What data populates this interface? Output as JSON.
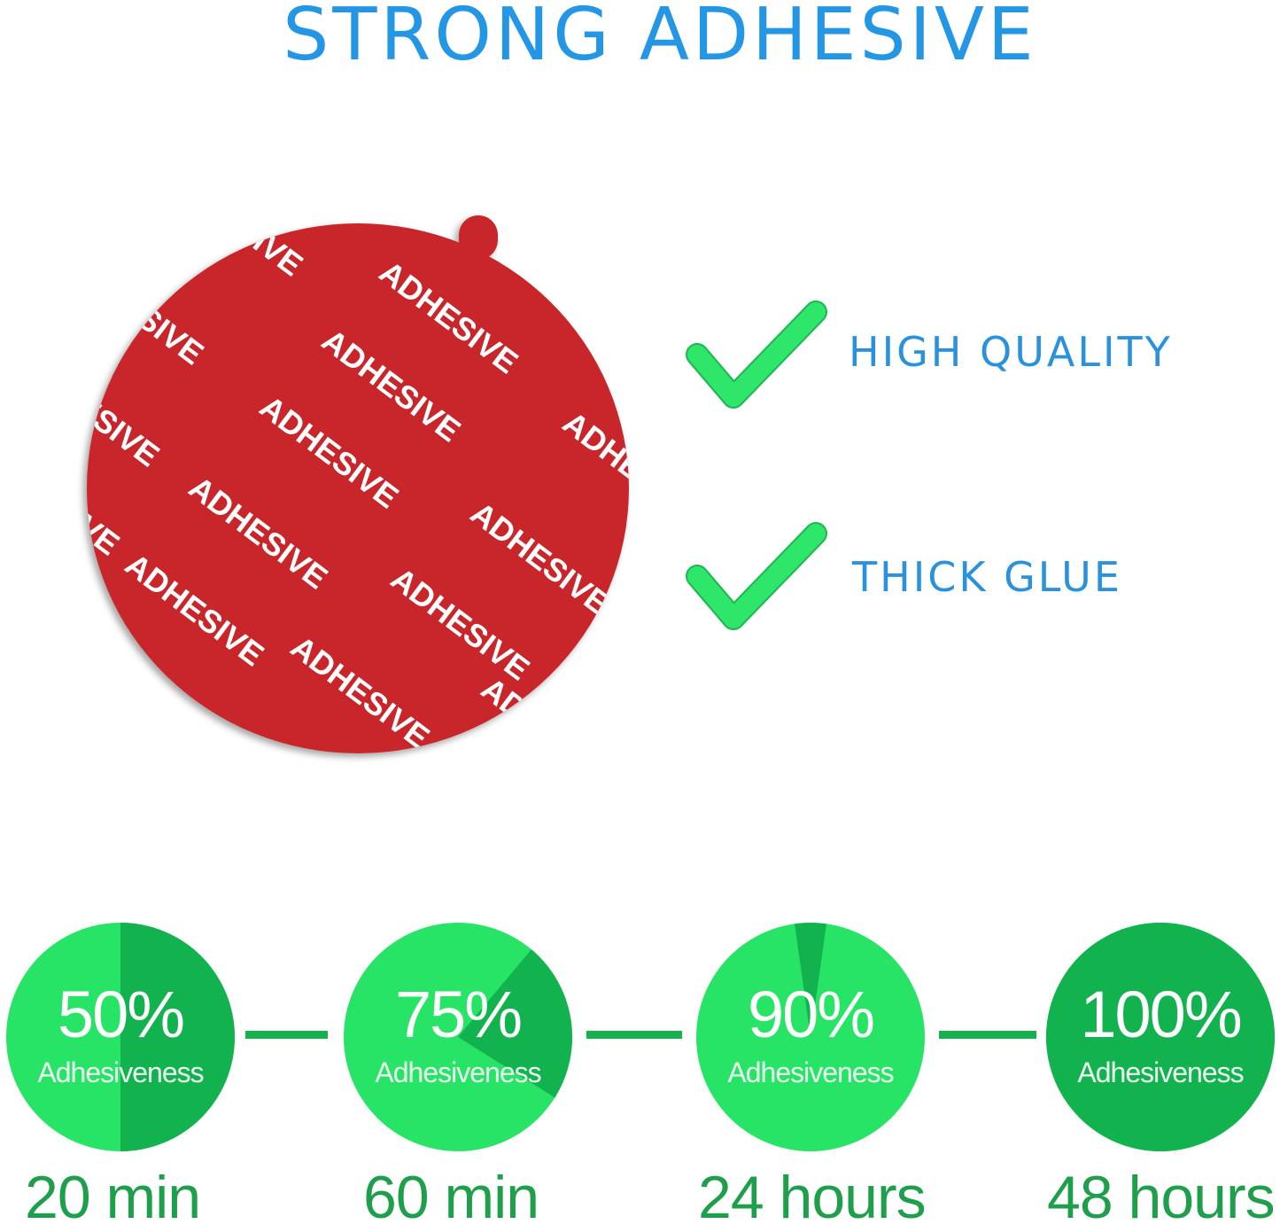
{
  "title": "STRONG ADHESIVE",
  "disc": {
    "label": "ADHESIVE",
    "color": "#c8262a"
  },
  "features": [
    {
      "icon": "check-icon",
      "label": "HIGH QUALITY"
    },
    {
      "icon": "check-icon",
      "label": "THICK GLUE"
    }
  ],
  "stages": [
    {
      "percent": "50%",
      "caption": "Adhesiveness",
      "time": "20 min"
    },
    {
      "percent": "75%",
      "caption": "Adhesiveness",
      "time": "60 min"
    },
    {
      "percent": "90%",
      "caption": "Adhesiveness",
      "time": "24 hours"
    },
    {
      "percent": "100%",
      "caption": "Adhesiveness",
      "time": "48 hours"
    }
  ],
  "colors": {
    "title_blue": "#2496e6",
    "check_green": "#2ee66a",
    "light_green": "#27e466",
    "dark_green": "#12b24f",
    "time_green": "#1f9e4c"
  }
}
